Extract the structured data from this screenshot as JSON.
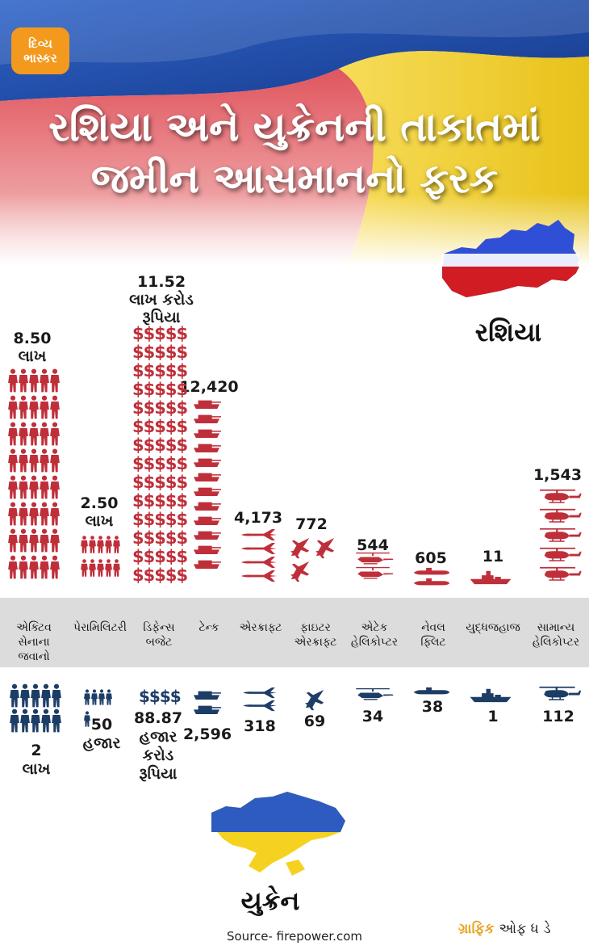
{
  "brand": {
    "logo_line1": "દિવ્ય",
    "logo_line2": "ભાસ્કર"
  },
  "header": {
    "title_line1": "રશિયા અને યુક્રેનની તાકાતમાં",
    "title_line2": "જમીન આસમાનનો ફરક"
  },
  "countries": {
    "russia": "રશિયા",
    "ukraine": "યુક્રેન"
  },
  "colors": {
    "russia": "#bf2f3a",
    "ukraine": "#1c3d66",
    "flag_blue": "#2e5bbf",
    "flag_yellow": "#f5d21f"
  },
  "categories": [
    "એક્ટિવ સેનાના જવાનો",
    "પેરામિલિટરી",
    "ડિફેન્સ બજેટ",
    "ટેન્ક",
    "એરક્રાફ્ટ",
    "ફાઇટર એરક્રાફ્ટ",
    "એટેક હેલિકોપ્ટર",
    "નેવલ ફ્લિટ",
    "યુદ્ધજહાજ",
    "સામાન્ય હેલિકોપ્ટર"
  ],
  "russia": {
    "active": "8.50\nલાખ",
    "paramilitary": "2.50\nલાખ",
    "budget": "11.52\nલાખ કરોડ\nરૂપિયા",
    "tanks": "12,420",
    "aircraft": "4,173",
    "fighters": "772",
    "attack_heli": "544",
    "naval": "605",
    "warships": "11",
    "helicopters": "1,543"
  },
  "ukraine": {
    "active": "2\nલાખ",
    "paramilitary": "50\nહજાર",
    "budget": "88.87\nહજાર\nકરોડ\nરૂપિયા",
    "tanks": "2,596",
    "aircraft": "318",
    "fighters": "69",
    "attack_heli": "34",
    "naval": "38",
    "warships": "1",
    "helicopters": "112"
  },
  "icons": {
    "soldier": "soldier-icon",
    "dollar": "$$$$$",
    "dollar_ukr": "$$$$",
    "tank": "tank-icon",
    "plane": "plane-icon",
    "jet": "jet-icon",
    "attack_heli": "attack-helicopter-icon",
    "submarine": "submarine-icon",
    "ship": "warship-icon",
    "heli": "helicopter-icon"
  },
  "footer": {
    "source": "Source- firepower.com",
    "credit_a": "ગ્રાફિક",
    "credit_b": "ઓફ ધ ડે"
  }
}
